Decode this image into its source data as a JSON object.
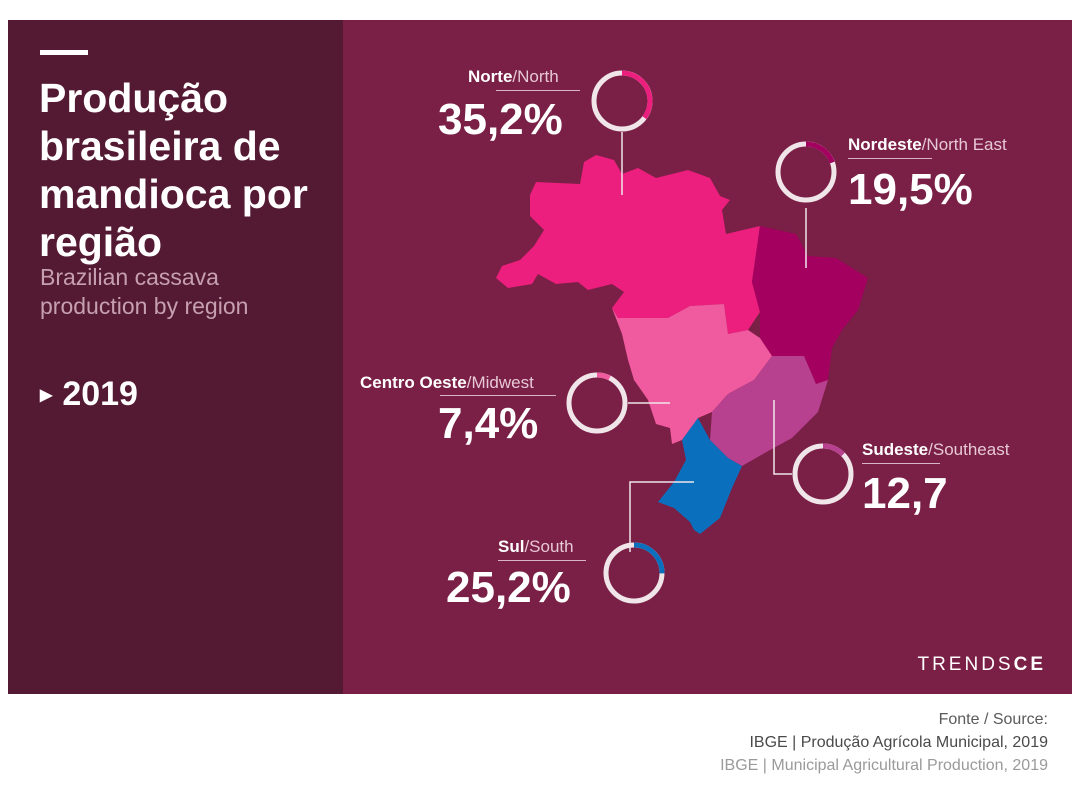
{
  "title": "Produção brasileira de mandioca por região",
  "subtitle": "Brazilian cassava production by region",
  "year": "2019",
  "regions": {
    "north": {
      "name_pt": "Norte",
      "name_en": "/North",
      "value": "35,2%",
      "share": 35.2,
      "color": "#ec1f7e"
    },
    "northeast": {
      "name_pt": "Nordeste",
      "name_en": "/North East",
      "value": "19,5%",
      "share": 19.5,
      "color": "#a3005f"
    },
    "midwest": {
      "name_pt": "Centro Oeste",
      "name_en": "/Midwest",
      "value": "7,4%",
      "share": 7.4,
      "color": "#f05a9f"
    },
    "southeast": {
      "name_pt": "Sudeste",
      "name_en": "/Southeast",
      "value": "12,7",
      "share": 12.7,
      "color": "#b7408f"
    },
    "south": {
      "name_pt": "Sul",
      "name_en": "/South",
      "value": "25,2%",
      "share": 25.2,
      "color": "#0a6fbd"
    }
  },
  "brand": {
    "prefix": "TRENDS",
    "suffix": "CE"
  },
  "source": {
    "heading": "Fonte / Source:",
    "line_pt": "IBGE | Produção Agrícola Municipal, 2019",
    "line_en": "IBGE | Municipal Agricultural Production, 2019"
  },
  "colors": {
    "background": "#7a1f45",
    "sidebar": "#551a33",
    "ring_track": "#f0e6ea"
  }
}
